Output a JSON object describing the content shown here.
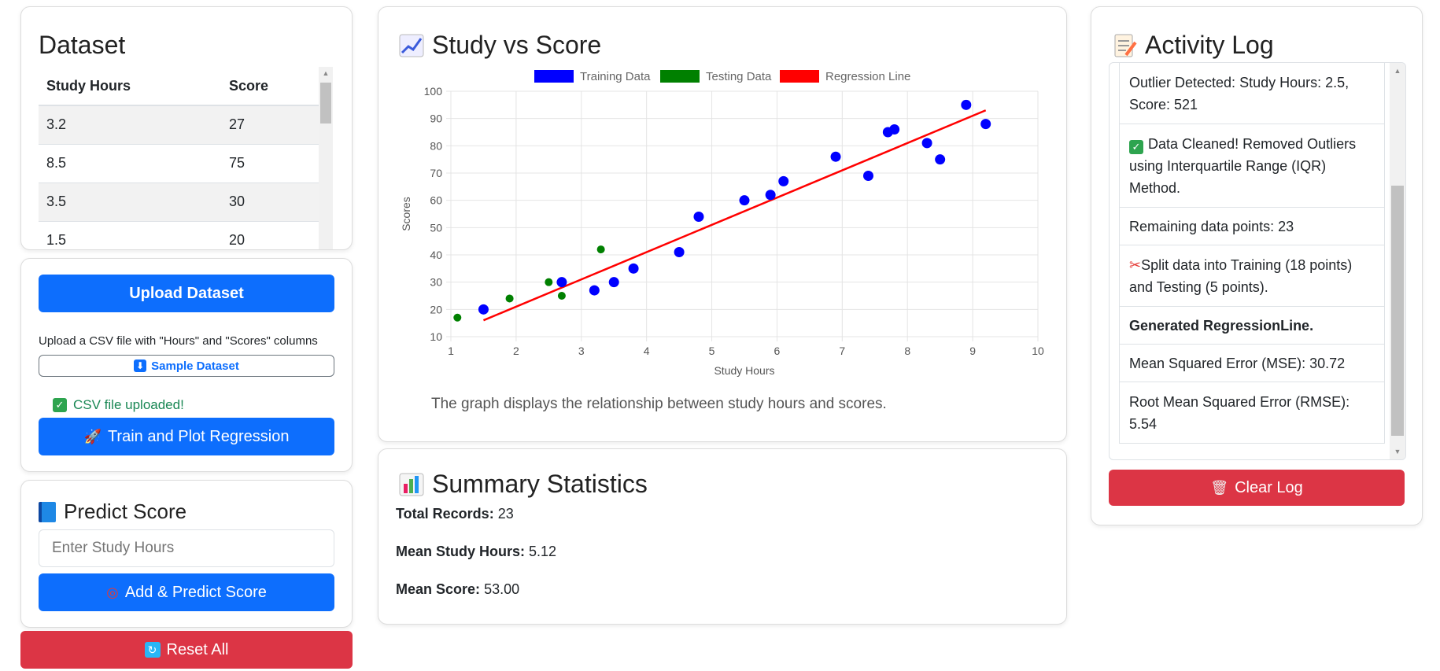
{
  "dataset": {
    "title": "Dataset",
    "columns": [
      "Study Hours",
      "Score"
    ],
    "rows": [
      [
        "3.2",
        "27"
      ],
      [
        "8.5",
        "75"
      ],
      [
        "3.5",
        "30"
      ],
      [
        "1.5",
        "20"
      ]
    ]
  },
  "upload": {
    "upload_label": "Upload Dataset",
    "hint": "Upload a CSV file with \"Hours\" and \"Scores\" columns",
    "sample_label": "Sample Dataset",
    "status": "CSV file uploaded!",
    "train_label": "Train and Plot Regression"
  },
  "predict": {
    "title": "Predict Score",
    "input_placeholder": "Enter Study Hours",
    "button_label": "Add & Predict Score"
  },
  "reset_label": "Reset All",
  "chart": {
    "title": "Study vs Score",
    "caption": "The graph displays the relationship between study hours and scores."
  },
  "chart_data": {
    "type": "scatter",
    "xlabel": "Study Hours",
    "ylabel": "Scores",
    "xlim": [
      1,
      10
    ],
    "ylim": [
      10,
      100
    ],
    "xticks": [
      1,
      2,
      3,
      4,
      5,
      6,
      7,
      8,
      9,
      10
    ],
    "yticks": [
      10,
      20,
      30,
      40,
      50,
      60,
      70,
      80,
      90,
      100
    ],
    "grid": true,
    "legend_position": "top",
    "series": [
      {
        "name": "Training Data",
        "color": "#0000ff",
        "points": [
          [
            1.5,
            20
          ],
          [
            2.7,
            30
          ],
          [
            3.2,
            27
          ],
          [
            3.5,
            30
          ],
          [
            3.8,
            35
          ],
          [
            4.5,
            41
          ],
          [
            4.8,
            54
          ],
          [
            5.5,
            60
          ],
          [
            5.9,
            62
          ],
          [
            6.1,
            67
          ],
          [
            6.9,
            76
          ],
          [
            7.4,
            69
          ],
          [
            7.7,
            85
          ],
          [
            7.8,
            86
          ],
          [
            8.3,
            81
          ],
          [
            8.5,
            75
          ],
          [
            8.9,
            95
          ],
          [
            9.2,
            88
          ]
        ]
      },
      {
        "name": "Testing Data",
        "color": "#008000",
        "points": [
          [
            1.1,
            17
          ],
          [
            1.9,
            24
          ],
          [
            2.5,
            30
          ],
          [
            2.7,
            25
          ],
          [
            3.3,
            42
          ]
        ]
      },
      {
        "name": "Regression Line",
        "color": "#ff0000",
        "type": "line",
        "points": [
          [
            1.5,
            16
          ],
          [
            9.2,
            93
          ]
        ]
      }
    ]
  },
  "summary": {
    "title": "Summary Statistics",
    "total_label": "Total Records:",
    "total_value": "23",
    "hours_label": "Mean Study Hours:",
    "hours_value": "5.12",
    "score_label": "Mean Score:",
    "score_value": "53.00"
  },
  "log": {
    "title": "Activity Log",
    "items": [
      "Outlier Detected: Study Hours: 2.5, Score: 521",
      "Data Cleaned! Removed Outliers using Interquartile Range (IQR) Method.",
      "Remaining data points: 23",
      "Split data into Training (18 points) and Testing (5 points).",
      "Generated RegressionLine.",
      "Mean Squared Error (MSE): 30.72",
      "Root Mean Squared Error (RMSE): 5.54"
    ],
    "clear_label": "Clear Log"
  },
  "icons": {
    "sample": "down-arrow-icon",
    "train": "rocket-icon",
    "predict_title": "book-icon",
    "predict_btn": "target-icon",
    "reset": "refresh-icon",
    "chart": "chart-line-icon",
    "summary": "bar-chart-icon",
    "log": "memo-icon",
    "clear": "trash-icon"
  }
}
